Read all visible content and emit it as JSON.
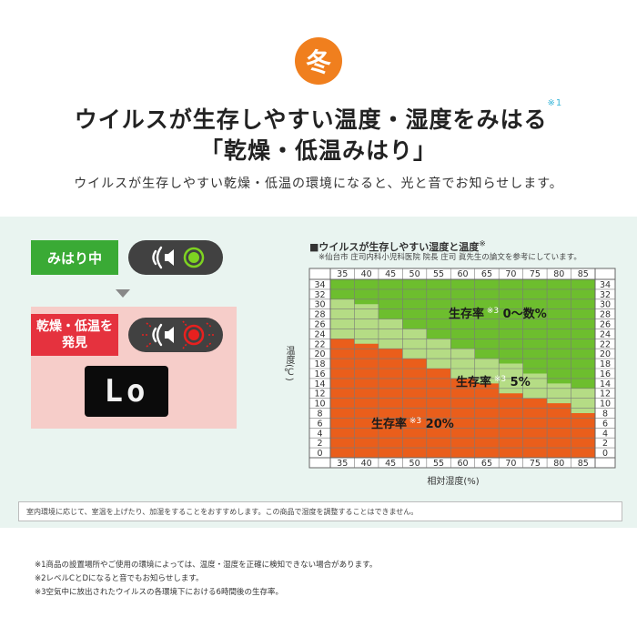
{
  "header": {
    "season": "冬",
    "title_line1": "ウイルスが生存しやすい温度・湿度をみはる",
    "title_note": "※1",
    "title_line2": "「乾燥・低温みはり」",
    "subtitle": "ウイルスが生存しやすい乾燥・低温の環境になると、光と音でお知らせします。"
  },
  "panel": {
    "monitoring_label": "みはり中",
    "alert_label_line1": "乾燥・低温を",
    "alert_label_line2": "発見",
    "display_text": "Lo",
    "colors": {
      "normal_light": "#7ed321",
      "alert_light": "#e8201f",
      "monitoring_tag": "#3aaa35",
      "alert_tag": "#e5323e"
    }
  },
  "chart": {
    "title": "■ウイルスが生存しやすい湿度と温度",
    "title_note": "※",
    "source_note": "※仙台市 庄司内科小児科医院 院長 庄司 眞先生の論文を参考にしています。",
    "y_axis_label": "温度(℃)",
    "x_axis_label": "相対湿度(%)",
    "zones": [
      {
        "label": "生存率",
        "note": "※3",
        "value": "0〜数%",
        "color": "#6dbe2e"
      },
      {
        "label": "生存率",
        "note": "※3",
        "value": "5%",
        "color": "#b5dc85"
      },
      {
        "label": "生存率",
        "note": "※3",
        "value": "20%",
        "color": "#ea5e1b"
      }
    ]
  },
  "chart_data": {
    "type": "heatmap",
    "title": "■ウイルスが生存しやすい湿度と温度",
    "xlabel": "相対湿度(%)",
    "ylabel": "温度(℃)",
    "x_ticks": [
      "35",
      "40",
      "45",
      "50",
      "55",
      "60",
      "65",
      "70",
      "75",
      "80",
      "85"
    ],
    "y_ticks": [
      "34",
      "32",
      "30",
      "28",
      "26",
      "24",
      "22",
      "20",
      "18",
      "16",
      "14",
      "12",
      "10",
      "8",
      "6",
      "4",
      "2",
      "0"
    ],
    "xlim": [
      35,
      85
    ],
    "ylim": [
      0,
      34
    ],
    "grid": true,
    "series": [
      {
        "name": "生存率 20%",
        "upper_temp_by_humidity": [
          23,
          22,
          21,
          19,
          17,
          15,
          14,
          12,
          11,
          10,
          8
        ]
      },
      {
        "name": "生存率 5%",
        "upper_temp_by_humidity": [
          31,
          30,
          27,
          25,
          23,
          21,
          19,
          18,
          16,
          14,
          13
        ]
      },
      {
        "name": "生存率 0〜数%",
        "upper_temp_by_humidity": [
          35,
          35,
          35,
          35,
          35,
          35,
          35,
          35,
          35,
          35,
          35
        ]
      }
    ]
  },
  "notice": "室内環境に応じて、室温を上げたり、加湿をすることをおすすめします。この商品で湿度を調整することはできません。",
  "footnotes": [
    "※1商品の設置場所やご使用の環境によっては、温度・湿度を正確に検知できない場合があります。",
    "※2レベルCとDになると音でもお知らせします。",
    "※3空気中に放出されたウイルスの各環境下における6時間後の生存率。"
  ]
}
